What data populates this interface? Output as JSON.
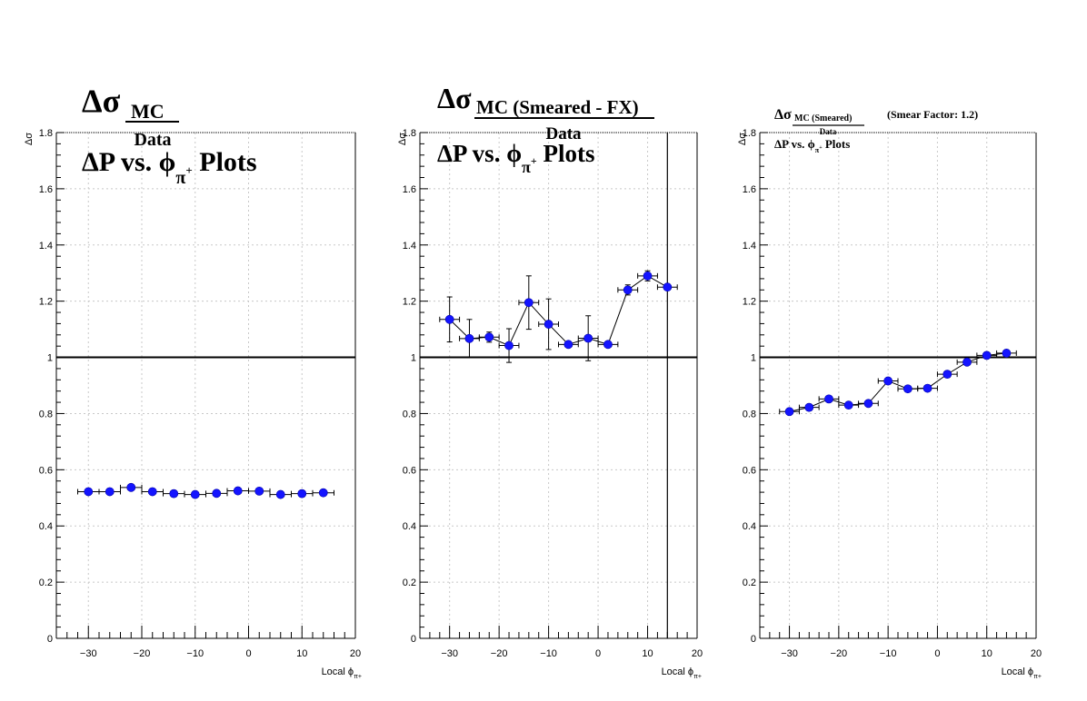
{
  "panels": [
    {
      "title": {
        "big": "Δσ",
        "sub": "MC",
        "den": "Data",
        "line2_pre": "ΔP vs.  ϕ",
        "line2_sub": "π",
        "line2_sup": "+",
        "line2_post": " Plots",
        "extra": ""
      },
      "ylabel": "Δσ",
      "xlabel": "Local ϕ",
      "xlabel_sub": "π+"
    },
    {
      "title": {
        "big": "Δσ",
        "sub": "MC (Smeared - FX)",
        "den": "Data",
        "line2_pre": "ΔP vs.  ϕ",
        "line2_sub": "π",
        "line2_sup": "+",
        "line2_post": " Plots",
        "extra": ""
      },
      "ylabel": "Δσ",
      "xlabel": "Local ϕ",
      "xlabel_sub": "π+"
    },
    {
      "title": {
        "big": "Δσ",
        "sub": "MC (Smeared)",
        "den": "Data",
        "line2_pre": "ΔP vs.  ϕ",
        "line2_sub": "π",
        "line2_sup": "+",
        "line2_post": " Plots",
        "extra": "(Smear Factor: 1.2)"
      },
      "ylabel": "Δσ",
      "xlabel": "Local ϕ",
      "xlabel_sub": "π+"
    }
  ],
  "colors": {
    "marker": "#1414ff",
    "axis": "#000000",
    "grid": "#c8c8c8"
  },
  "chart_data": [
    {
      "type": "scatter",
      "title": "ΔσMC/Data ΔP vs. ϕπ+ Plots",
      "xlabel": "Local ϕπ+",
      "ylabel": "Δσ",
      "xlim": [
        -36,
        20
      ],
      "ylim": [
        0,
        1.8
      ],
      "xticks": [
        -30,
        -20,
        -10,
        0,
        10,
        20
      ],
      "yticks": [
        0,
        0.2,
        0.4,
        0.6,
        0.8,
        1,
        1.2,
        1.4,
        1.6,
        1.8
      ],
      "grid": true,
      "reference_line_y": 1,
      "series": [
        {
          "x": [
            -30,
            -26,
            -22,
            -18,
            -14,
            -10,
            -6,
            -2,
            2,
            6,
            10,
            14
          ],
          "xerr": 2,
          "y": [
            0.522,
            0.522,
            0.537,
            0.522,
            0.515,
            0.512,
            0.516,
            0.525,
            0.524,
            0.512,
            0.515,
            0.518
          ],
          "yerr": [
            0.005,
            0.005,
            0.006,
            0.005,
            0.005,
            0.005,
            0.005,
            0.005,
            0.005,
            0.005,
            0.005,
            0.005
          ],
          "connected": false
        }
      ]
    },
    {
      "type": "line",
      "title": "ΔσMC (Smeared - FX)/Data ΔP vs. ϕπ+ Plots",
      "xlabel": "Local ϕπ+",
      "ylabel": "Δσ",
      "xlim": [
        -36,
        20
      ],
      "ylim": [
        0,
        1.8
      ],
      "xticks": [
        -30,
        -20,
        -10,
        0,
        10,
        20
      ],
      "yticks": [
        0,
        0.2,
        0.4,
        0.6,
        0.8,
        1,
        1.2,
        1.4,
        1.6,
        1.8
      ],
      "grid": true,
      "reference_line_y": 1,
      "reference_line_x": 14,
      "series": [
        {
          "x": [
            -30,
            -26,
            -22,
            -18,
            -14,
            -10,
            -6,
            -2,
            2,
            6,
            10,
            14
          ],
          "xerr": 2,
          "y": [
            1.135,
            1.067,
            1.072,
            1.042,
            1.195,
            1.118,
            1.046,
            1.068,
            1.046,
            1.24,
            1.29,
            1.25
          ],
          "yerr": [
            0.08,
            0.068,
            0.018,
            0.06,
            0.095,
            0.09,
            0.008,
            0.08,
            0.008,
            0.018,
            0.018,
            0.008
          ],
          "connected": true
        }
      ]
    },
    {
      "type": "line",
      "title": "ΔσMC (Smeared)/Data ΔP vs. ϕπ+ Plots (Smear Factor: 1.2)",
      "xlabel": "Local ϕπ+",
      "ylabel": "Δσ",
      "xlim": [
        -36,
        20
      ],
      "ylim": [
        0,
        1.8
      ],
      "xticks": [
        -30,
        -20,
        -10,
        0,
        10,
        20
      ],
      "yticks": [
        0,
        0.2,
        0.4,
        0.6,
        0.8,
        1,
        1.2,
        1.4,
        1.6,
        1.8
      ],
      "grid": true,
      "reference_line_y": 1,
      "series": [
        {
          "x": [
            -30,
            -26,
            -22,
            -18,
            -14,
            -10,
            -6,
            -2,
            2,
            6,
            10,
            14
          ],
          "xerr": 2,
          "y": [
            0.807,
            0.822,
            0.852,
            0.83,
            0.836,
            0.916,
            0.888,
            0.89,
            0.94,
            0.983,
            1.007,
            1.015
          ],
          "yerr": [
            0.008,
            0.008,
            0.01,
            0.008,
            0.008,
            0.01,
            0.008,
            0.01,
            0.01,
            0.008,
            0.006,
            0.006
          ],
          "connected": true
        }
      ]
    }
  ]
}
